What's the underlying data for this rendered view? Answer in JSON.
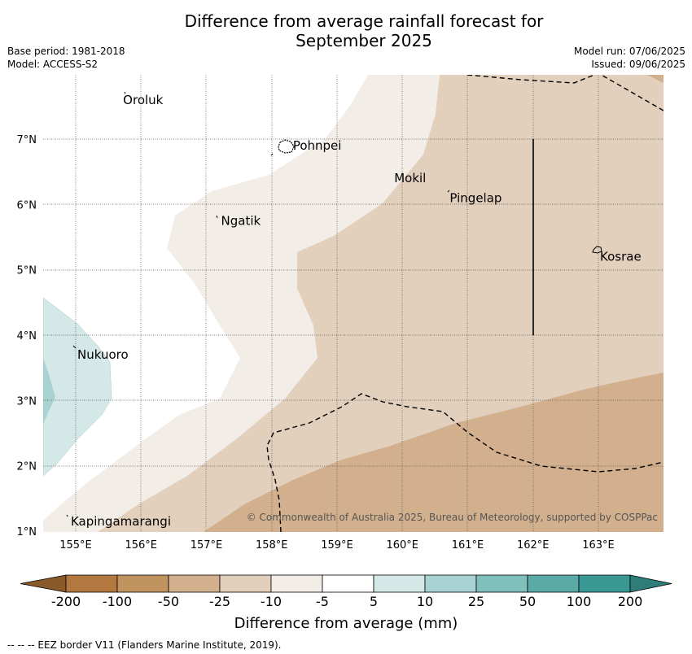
{
  "title": {
    "line1": "Difference from average rainfall forecast for",
    "line2": "September 2025"
  },
  "meta": {
    "base_period": "Base period: 1981-2018",
    "model": "Model: ACCESS-S2",
    "model_run": "Model run: 07/06/2025",
    "issued": "Issued: 09/06/2025"
  },
  "map": {
    "lon_ticks": [
      "155°E",
      "156°E",
      "157°E",
      "158°E",
      "159°E",
      "160°E",
      "161°E",
      "162°E",
      "163°E"
    ],
    "lat_ticks": [
      "1°N",
      "2°N",
      "3°N",
      "4°N",
      "5°N",
      "6°N",
      "7°N"
    ],
    "places": [
      {
        "name": "Oroluk",
        "lon": 155.7,
        "lat": 7.6
      },
      {
        "name": "Pohnpei",
        "lon": 158.3,
        "lat": 6.9
      },
      {
        "name": "Mokil",
        "lon": 159.85,
        "lat": 6.4
      },
      {
        "name": "Pingelap",
        "lon": 160.7,
        "lat": 6.1
      },
      {
        "name": "Ngatik",
        "lon": 157.2,
        "lat": 5.75
      },
      {
        "name": "Kosrae",
        "lon": 163.0,
        "lat": 5.2
      },
      {
        "name": "Nukuoro",
        "lon": 155.0,
        "lat": 3.7
      },
      {
        "name": "Kapingamarangi",
        "lon": 154.9,
        "lat": 1.15
      }
    ],
    "credit": "© Commonwealth of Australia 2025, Bureau of Meteorology, supported by COSPPac"
  },
  "colorbar": {
    "labels": [
      "-200",
      "-100",
      "-50",
      "-25",
      "-10",
      "-5",
      "5",
      "10",
      "25",
      "50",
      "100",
      "200"
    ],
    "colors": [
      "#8a5a2b",
      "#b27840",
      "#c1935f",
      "#d2b08d",
      "#e2cfbc",
      "#f3ede7",
      "#ffffff",
      "#d3e8e7",
      "#a8d3d2",
      "#7fbfbc",
      "#5aaaa7",
      "#3a9894",
      "#2e7d79"
    ],
    "title": "Difference from average (mm)"
  },
  "footer": "--  --  -- EEZ border V11 (Flanders Marine Institute, 2019)."
}
